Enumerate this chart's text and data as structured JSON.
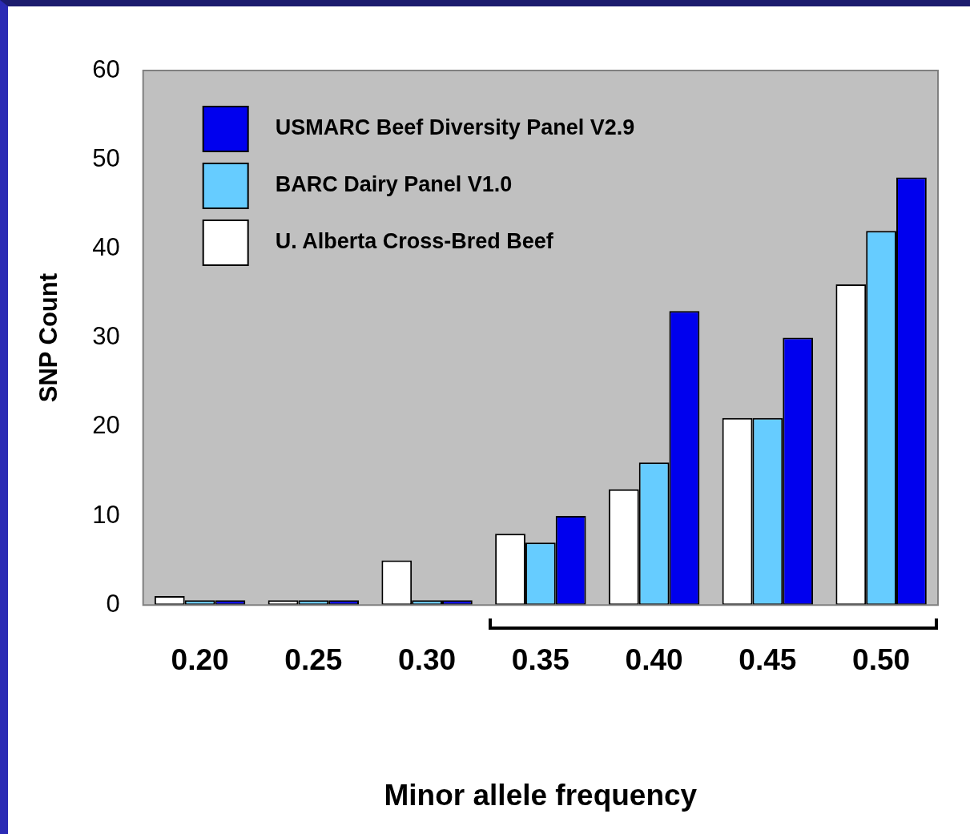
{
  "chart_data": {
    "type": "bar",
    "xlabel": "Minor allele frequency",
    "ylabel": "SNP Count",
    "categories": [
      "0.20",
      "0.25",
      "0.30",
      "0.35",
      "0.40",
      "0.45",
      "0.50"
    ],
    "series": [
      {
        "name": "U. Alberta Cross-Bred Beef",
        "color": "#ffffff",
        "values": [
          1,
          0,
          5,
          8,
          13,
          21,
          36
        ]
      },
      {
        "name": "BARC Dairy Panel V1.0",
        "color": "#66ccff",
        "values": [
          0,
          0,
          0,
          7,
          16,
          21,
          42
        ]
      },
      {
        "name": "USMARC Beef Diversity Panel V2.9",
        "color": "#0000ee",
        "values": [
          0,
          0,
          0,
          10,
          33,
          30,
          48
        ]
      }
    ],
    "ylim": [
      0,
      60
    ],
    "yticks": [
      0,
      10,
      20,
      30,
      40,
      50,
      60
    ],
    "legend": "top left"
  }
}
